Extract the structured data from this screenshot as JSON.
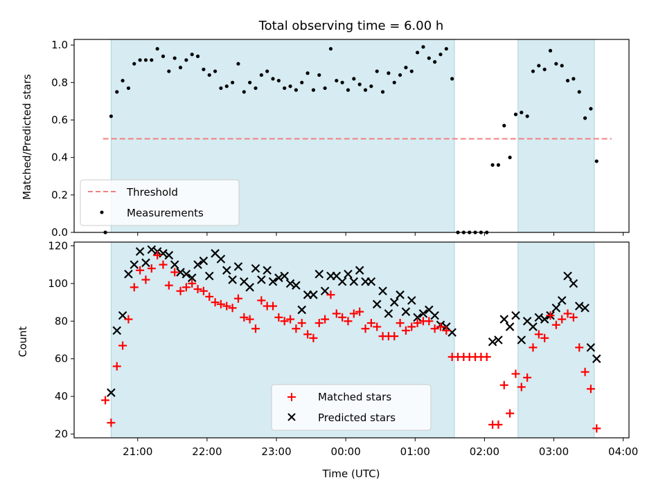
{
  "chart_data": [
    {
      "type": "scatter",
      "title": "Total observing time = 6.00 h",
      "xlabel": "",
      "ylabel": "Matched/Predicted stars",
      "ylim": [
        0,
        1.03
      ],
      "yticks": [
        "0.0",
        "0.2",
        "0.4",
        "0.6",
        "0.8",
        "1.0"
      ],
      "legend": {
        "placement": "lower-left",
        "entries": [
          {
            "label": "Threshold",
            "style": "dashed-line",
            "color": "#f08080"
          },
          {
            "label": "Measurements",
            "style": "dot",
            "color": "#000000"
          }
        ]
      },
      "threshold": {
        "name": "Threshold",
        "value": 0.5,
        "x_range": [
          "20:30",
          "03:50"
        ],
        "color": "#f08080"
      },
      "observing_windows": [
        [
          "20:37",
          "01:34"
        ],
        [
          "02:29",
          "03:35"
        ]
      ],
      "series": [
        {
          "name": "Measurements",
          "color": "#000000",
          "x": [
            "20:32",
            "20:37",
            "20:42",
            "20:47",
            "20:52",
            "20:57",
            "21:02",
            "21:07",
            "21:12",
            "21:17",
            "21:22",
            "21:27",
            "21:32",
            "21:37",
            "21:42",
            "21:47",
            "21:52",
            "21:57",
            "22:02",
            "22:07",
            "22:12",
            "22:17",
            "22:22",
            "22:27",
            "22:32",
            "22:37",
            "22:42",
            "22:47",
            "22:52",
            "22:57",
            "23:02",
            "23:07",
            "23:12",
            "23:17",
            "23:22",
            "23:27",
            "23:32",
            "23:37",
            "23:42",
            "23:47",
            "23:52",
            "23:57",
            "00:02",
            "00:07",
            "00:12",
            "00:17",
            "00:22",
            "00:27",
            "00:32",
            "00:37",
            "00:42",
            "00:47",
            "00:52",
            "00:57",
            "01:02",
            "01:07",
            "01:12",
            "01:17",
            "01:22",
            "01:27",
            "01:32",
            "01:37",
            "01:42",
            "01:47",
            "01:52",
            "01:57",
            "02:02",
            "02:07",
            "02:12",
            "02:17",
            "02:22",
            "02:27",
            "02:32",
            "02:37",
            "02:42",
            "02:47",
            "02:52",
            "02:57",
            "03:02",
            "03:07",
            "03:12",
            "03:17",
            "03:22",
            "03:27",
            "03:32",
            "03:37"
          ],
          "y": [
            0.0,
            0.62,
            0.75,
            0.81,
            0.77,
            0.9,
            0.92,
            0.92,
            0.92,
            0.98,
            0.94,
            0.86,
            0.93,
            0.88,
            0.92,
            0.95,
            0.94,
            0.87,
            0.84,
            0.86,
            0.77,
            0.78,
            0.8,
            0.9,
            0.75,
            0.8,
            0.77,
            0.84,
            0.86,
            0.82,
            0.81,
            0.77,
            0.78,
            0.76,
            0.8,
            0.85,
            0.76,
            0.84,
            0.77,
            0.98,
            0.81,
            0.8,
            0.76,
            0.82,
            0.79,
            0.76,
            0.78,
            0.86,
            0.75,
            0.85,
            0.8,
            0.84,
            0.88,
            0.86,
            0.96,
            0.99,
            0.93,
            0.91,
            0.95,
            0.98,
            0.82,
            0.0,
            0.0,
            0.0,
            0.0,
            0.0,
            0.0,
            0.36,
            0.36,
            0.57,
            0.4,
            0.63,
            0.64,
            0.62,
            0.86,
            0.89,
            0.87,
            0.97,
            0.9,
            0.89,
            0.81,
            0.82,
            0.75,
            0.61,
            0.66,
            0.38
          ]
        }
      ]
    },
    {
      "type": "scatter",
      "title": "",
      "xlabel": "Time (UTC)",
      "ylabel": "Count",
      "ylim": [
        18,
        122
      ],
      "yticks": [
        "20",
        "40",
        "60",
        "80",
        "100",
        "120"
      ],
      "xticks": [
        "21:00",
        "22:00",
        "23:00",
        "00:00",
        "01:00",
        "02:00",
        "03:00",
        "04:00"
      ],
      "legend": {
        "placement": "lower-center",
        "entries": [
          {
            "label": "Matched stars",
            "style": "plus",
            "color": "#ff0000"
          },
          {
            "label": "Predicted stars",
            "style": "x",
            "color": "#000000"
          }
        ]
      },
      "observing_windows": [
        [
          "20:37",
          "01:34"
        ],
        [
          "02:29",
          "03:35"
        ]
      ],
      "series": [
        {
          "name": "Matched stars",
          "marker": "plus",
          "color": "#ff0000",
          "x": [
            "20:32",
            "20:37",
            "20:42",
            "20:47",
            "20:52",
            "20:57",
            "21:02",
            "21:07",
            "21:12",
            "21:17",
            "21:22",
            "21:27",
            "21:32",
            "21:37",
            "21:42",
            "21:47",
            "21:52",
            "21:57",
            "22:02",
            "22:07",
            "22:12",
            "22:17",
            "22:22",
            "22:27",
            "22:32",
            "22:37",
            "22:42",
            "22:47",
            "22:52",
            "22:57",
            "23:02",
            "23:07",
            "23:12",
            "23:17",
            "23:22",
            "23:27",
            "23:32",
            "23:37",
            "23:42",
            "23:47",
            "23:52",
            "23:57",
            "00:02",
            "00:07",
            "00:12",
            "00:17",
            "00:22",
            "00:27",
            "00:32",
            "00:37",
            "00:42",
            "00:47",
            "00:52",
            "00:57",
            "01:02",
            "01:07",
            "01:12",
            "01:17",
            "01:22",
            "01:27",
            "01:32",
            "01:37",
            "01:42",
            "01:47",
            "01:52",
            "01:57",
            "02:02",
            "02:07",
            "02:12",
            "02:17",
            "02:22",
            "02:27",
            "02:32",
            "02:37",
            "02:42",
            "02:47",
            "02:52",
            "02:57",
            "03:02",
            "03:07",
            "03:12",
            "03:17",
            "03:22",
            "03:27",
            "03:32",
            "03:37"
          ],
          "y": [
            38,
            26,
            56,
            67,
            81,
            98,
            107,
            102,
            108,
            115,
            110,
            99,
            106,
            96,
            98,
            100,
            97,
            96,
            93,
            90,
            89,
            88,
            87,
            92,
            82,
            81,
            76,
            91,
            88,
            88,
            82,
            80,
            81,
            76,
            79,
            73,
            71,
            79,
            81,
            94,
            84,
            82,
            80,
            84,
            85,
            76,
            79,
            77,
            72,
            72,
            72,
            79,
            75,
            77,
            79,
            80,
            80,
            76,
            77,
            75,
            61,
            61,
            61,
            61,
            61,
            61,
            61,
            25,
            25,
            46,
            31,
            52,
            45,
            50,
            66,
            73,
            71,
            83,
            78,
            81,
            84,
            82,
            66,
            53,
            44,
            23
          ]
        },
        {
          "name": "Predicted stars",
          "marker": "x",
          "color": "#000000",
          "x": [
            "20:37",
            "20:42",
            "20:47",
            "20:52",
            "20:57",
            "21:02",
            "21:07",
            "21:12",
            "21:17",
            "21:22",
            "21:27",
            "21:32",
            "21:37",
            "21:42",
            "21:47",
            "21:52",
            "21:57",
            "22:02",
            "22:07",
            "22:12",
            "22:17",
            "22:22",
            "22:27",
            "22:32",
            "22:37",
            "22:42",
            "22:47",
            "22:52",
            "22:57",
            "23:02",
            "23:07",
            "23:12",
            "23:17",
            "23:22",
            "23:27",
            "23:32",
            "23:37",
            "23:42",
            "23:47",
            "23:52",
            "23:57",
            "00:02",
            "00:07",
            "00:12",
            "00:17",
            "00:22",
            "00:27",
            "00:32",
            "00:37",
            "00:42",
            "00:47",
            "00:52",
            "00:57",
            "01:02",
            "01:07",
            "01:12",
            "01:17",
            "01:22",
            "01:27",
            "01:32",
            "02:07",
            "02:12",
            "02:17",
            "02:22",
            "02:27",
            "02:32",
            "02:37",
            "02:42",
            "02:47",
            "02:52",
            "02:57",
            "03:02",
            "03:07",
            "03:12",
            "03:17",
            "03:22",
            "03:27",
            "03:32",
            "03:37"
          ],
          "y": [
            42,
            75,
            83,
            105,
            110,
            117,
            111,
            118,
            117,
            116,
            115,
            110,
            106,
            105,
            103,
            110,
            112,
            104,
            116,
            113,
            107,
            102,
            109,
            101,
            98,
            108,
            102,
            107,
            101,
            103,
            104,
            100,
            99,
            86,
            94,
            94,
            105,
            96,
            104,
            104,
            101,
            105,
            101,
            107,
            101,
            101,
            89,
            96,
            84,
            90,
            94,
            85,
            91,
            82,
            84,
            86,
            83,
            78,
            77,
            74,
            69,
            70,
            81,
            77,
            83,
            70,
            80,
            77,
            82,
            81,
            83,
            87,
            91,
            104,
            100,
            88,
            87,
            66,
            60
          ]
        }
      ]
    }
  ]
}
